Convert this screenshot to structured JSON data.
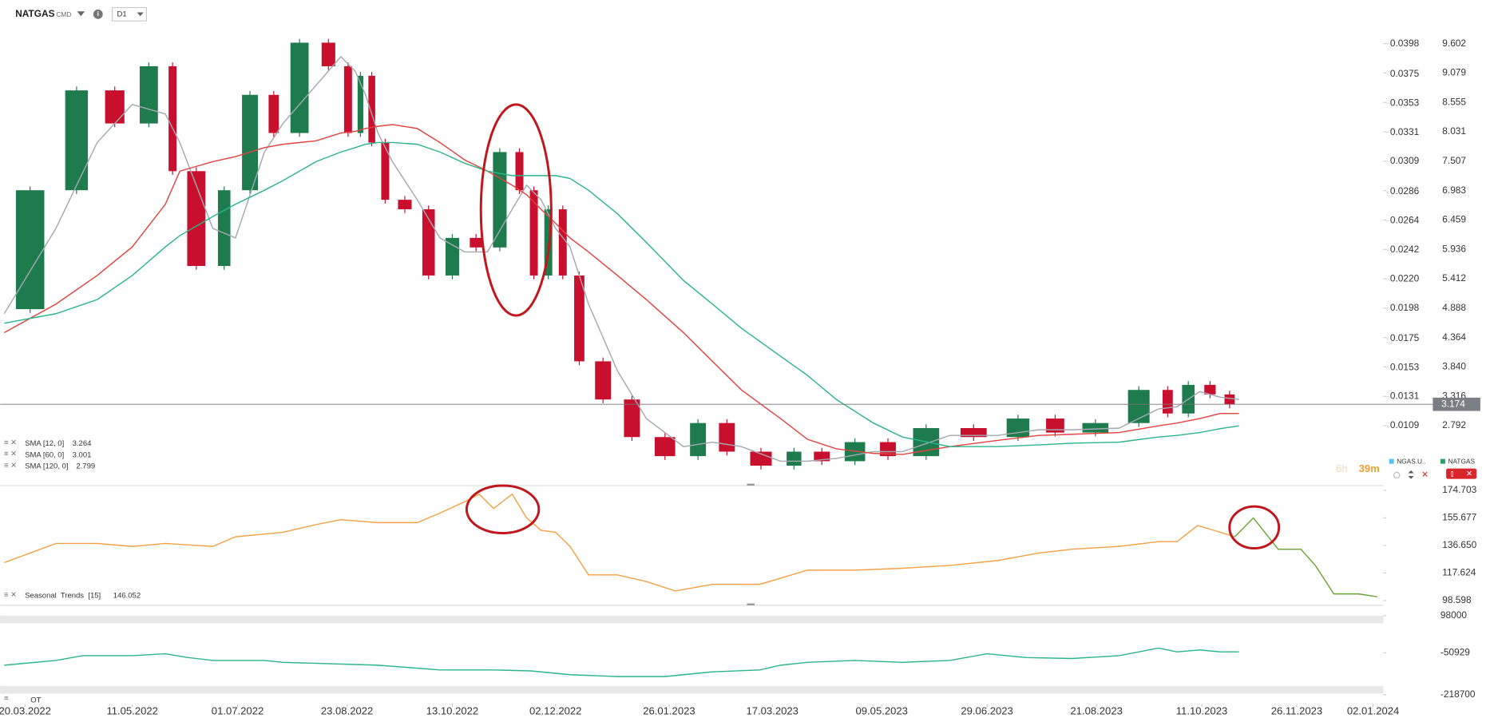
{
  "header": {
    "symbol": "NATGAS",
    "market": "CMD",
    "interval": "D1",
    "info": "i"
  },
  "chart_data": [
    {
      "type": "candlestick",
      "x": [
        "2022-03-10",
        "2022-04-04",
        "2022-04-24",
        "2022-05-11",
        "2022-05-27",
        "2022-06-03",
        "2022-06-19",
        "2022-06-30",
        "2022-07-14",
        "2022-07-23",
        "2022-08-08",
        "2022-08-20",
        "2022-08-27",
        "2022-09-01",
        "2022-09-07",
        "2022-09-14",
        "2022-09-26",
        "2022-10-07",
        "2022-10-19",
        "2022-10-30",
        "2022-11-11",
        "2022-11-18",
        "2022-11-25",
        "2022-12-02",
        "2022-12-09",
        "2022-12-18",
        "2023-01-01",
        "2023-01-15",
        "2023-02-02",
        "2023-02-16",
        "2023-03-02",
        "2023-03-21",
        "2023-04-03",
        "2023-04-17",
        "2023-05-05",
        "2023-05-19",
        "2023-06-11",
        "2023-07-04",
        "2023-07-24",
        "2023-08-09",
        "2023-09-01",
        "2023-09-20",
        "2023-09-29",
        "2023-10-10",
        "2023-10-20",
        "2023-10-29"
      ],
      "xlim": [
        "2022-03-08",
        "2024-01-07"
      ],
      "ylim": [
        1.742,
        10.042
      ],
      "yticks": [
        9.602,
        9.079,
        8.555,
        8.031,
        7.507,
        6.983,
        6.459,
        5.936,
        5.412,
        4.888,
        4.364,
        {
          "value": 3.84,
          "label": "3.840"
        },
        3.316,
        2.792
      ],
      "y2lim": [
        0.00644,
        0.04167
      ],
      "y2ticks": [
        0.0398,
        0.0375,
        0.0353,
        0.0331,
        0.0309,
        0.0286,
        0.0264,
        0.0242,
        {
          "value": 0.022,
          "label": "0.0220"
        },
        0.0198,
        0.0175,
        0.0153,
        0.0131,
        0.0109
      ],
      "series": [
        {
          "name": "NATGAS",
          "color": "#1e7b4d",
          "down_color": "#c8102e",
          "values": [
            4.87,
            6.99,
            8.77,
            8.18,
            9.2,
            7.33,
            5.64,
            6.99,
            8.69,
            8.01,
            9.62,
            9.2,
            8.01,
            9.03,
            7.84,
            6.82,
            6.65,
            5.47,
            6.14,
            5.97,
            7.67,
            6.99,
            5.47,
            6.65,
            5.47,
            3.94,
            3.26,
            2.59,
            2.25,
            2.84,
            2.33,
            2.08,
            2.33,
            2.16,
            2.5,
            2.25,
            2.75,
            2.59,
            2.92,
            2.67,
            2.84,
            3.43,
            3.01,
            3.52,
            3.35,
            3.17
          ]
        },
        {
          "name": "SMA [12, 0]",
          "color": "#a3a8b0",
          "last": 3.264,
          "values": [
            4.79,
            6.31,
            7.84,
            8.52,
            8.35,
            7.84,
            6.31,
            6.14,
            7.67,
            8.18,
            8.86,
            9.37,
            9.11,
            8.69,
            8.01,
            7.5,
            6.82,
            6.14,
            5.89,
            5.89,
            6.65,
            7.08,
            6.82,
            6.31,
            5.98,
            4.96,
            3.77,
            2.92,
            2.42,
            2.5,
            2.42,
            2.16,
            2.16,
            2.21,
            2.33,
            2.33,
            2.62,
            2.62,
            2.72,
            2.72,
            2.75,
            3.09,
            3.13,
            3.4,
            3.3,
            3.26
          ]
        },
        {
          "name": "SMA [60, 0]",
          "color": "#e3433f",
          "last": 3.001,
          "values": [
            4.45,
            4.96,
            5.47,
            5.98,
            6.74,
            7.33,
            7.5,
            7.59,
            7.75,
            7.81,
            7.87,
            8.01,
            8.04,
            8.09,
            8.13,
            8.16,
            8.09,
            7.84,
            7.53,
            7.33,
            7.08,
            6.91,
            6.65,
            6.4,
            6.14,
            5.89,
            5.47,
            5.04,
            4.45,
            3.94,
            3.43,
            2.92,
            2.55,
            2.38,
            2.3,
            2.28,
            2.42,
            2.53,
            2.62,
            2.64,
            2.67,
            2.79,
            2.84,
            2.92,
            3.01,
            3.01
          ]
        },
        {
          "name": "SMA [120, 0]",
          "color": "#2bb58c",
          "last": 2.799,
          "values": [
            4.62,
            4.79,
            5.04,
            5.47,
            5.98,
            6.18,
            6.52,
            6.74,
            6.99,
            7.16,
            7.5,
            7.67,
            7.75,
            7.81,
            7.84,
            7.84,
            7.81,
            7.67,
            7.47,
            7.33,
            7.25,
            7.25,
            7.25,
            7.25,
            7.2,
            6.99,
            6.57,
            6.06,
            5.38,
            4.96,
            4.53,
            4.03,
            3.69,
            3.26,
            2.84,
            2.59,
            2.42,
            2.42,
            2.45,
            2.48,
            2.5,
            2.59,
            2.62,
            2.67,
            2.74,
            2.79
          ]
        }
      ],
      "last_price": 3.174,
      "instruments": [
        {
          "name": "NGAS.U..",
          "color": "#4fc3f7"
        },
        {
          "name": "NATGAS",
          "color": "#26a269"
        }
      ],
      "timer": [
        "6h",
        "39m"
      ]
    },
    {
      "type": "line",
      "x": [
        "2022-03-10",
        "2022-04-04",
        "2022-04-24",
        "2022-05-11",
        "2022-05-27",
        "2022-06-19",
        "2022-06-30",
        "2022-07-23",
        "2022-08-08",
        "2022-08-20",
        "2022-09-07",
        "2022-09-26",
        "2022-10-07",
        "2022-10-19",
        "2022-10-26",
        "2022-11-02",
        "2022-11-11",
        "2022-11-18",
        "2022-11-25",
        "2022-12-02",
        "2022-12-09",
        "2022-12-18",
        "2023-01-01",
        "2023-01-15",
        "2023-01-29",
        "2023-02-16",
        "2023-03-11",
        "2023-04-03",
        "2023-04-26",
        "2023-05-19",
        "2023-06-11",
        "2023-07-04",
        "2023-07-24",
        "2023-08-09",
        "2023-09-01",
        "2023-09-20",
        "2023-09-29",
        "2023-10-09",
        "2023-10-20",
        "2023-10-27",
        "2023-11-05",
        "2023-11-17",
        "2023-11-28",
        "2023-12-05",
        "2023-12-14",
        "2023-12-26",
        "2024-01-04"
      ],
      "xlim": [
        "2022-03-08",
        "2024-01-07"
      ],
      "ylim": [
        95.97,
        177.33
      ],
      "yticks": [
        174.703,
        155.677,
        {
          "value": 136.65,
          "label": "136.650"
        },
        117.624,
        98.598
      ],
      "legend_value": 146.052,
      "series": [
        {
          "name": "Seasonal  Trends  [15]",
          "color": "#f5a146",
          "values": [
            124.8,
            138,
            138,
            136,
            138,
            136,
            142.6,
            145.8,
            151.1,
            154.4,
            152.4,
            152.4,
            159,
            166.8,
            172.1,
            162.2,
            172.1,
            155.7,
            147.1,
            145.8,
            136,
            116.3,
            116.3,
            111.7,
            105.2,
            109.8,
            109.8,
            119.6,
            119.6,
            120.9,
            122.9,
            126.2,
            131.4,
            134,
            136,
            139.3,
            139.3,
            150.4,
            145.8,
            142.6,
            null,
            null,
            null,
            null,
            null,
            null,
            null
          ]
        },
        {
          "color": "#6aa332",
          "values": [
            null,
            null,
            null,
            null,
            null,
            null,
            null,
            null,
            null,
            null,
            null,
            null,
            null,
            null,
            null,
            null,
            null,
            null,
            null,
            null,
            null,
            null,
            null,
            null,
            null,
            null,
            null,
            null,
            null,
            null,
            null,
            null,
            null,
            null,
            null,
            null,
            null,
            null,
            null,
            142.6,
            155.7,
            134,
            134,
            122.9,
            103.2,
            103.2,
            101.2
          ]
        }
      ]
    },
    {
      "type": "line",
      "x": [
        "2022-03-10",
        "2022-04-04",
        "2022-04-17",
        "2022-05-11",
        "2022-05-27",
        "2022-06-07",
        "2022-06-19",
        "2022-07-14",
        "2022-07-23",
        "2022-09-07",
        "2022-10-07",
        "2022-11-02",
        "2022-11-20",
        "2022-12-09",
        "2023-01-01",
        "2023-01-24",
        "2023-02-16",
        "2023-03-11",
        "2023-03-21",
        "2023-04-03",
        "2023-04-26",
        "2023-05-19",
        "2023-06-11",
        "2023-06-29",
        "2023-07-18",
        "2023-08-09",
        "2023-09-01",
        "2023-09-20",
        "2023-09-29",
        "2023-10-10",
        "2023-10-20",
        "2023-10-29"
      ],
      "xlim": [
        "2022-03-08",
        "2024-01-07"
      ],
      "ylim": [
        -253000,
        128500
      ],
      "yticks": [
        98000,
        -50929,
        -218700
      ],
      "xticks": [
        {
          "value": "2022-03-20",
          "label": "20.03.2022"
        },
        {
          "value": "2022-05-11",
          "label": "11.05.2022"
        },
        {
          "value": "2022-07-01",
          "label": "01.07.2022"
        },
        {
          "value": "2022-08-23",
          "label": "23.08.2022"
        },
        {
          "value": "2022-10-13",
          "label": "13.10.2022"
        },
        {
          "value": "2022-12-02",
          "label": "02.12.2022"
        },
        {
          "value": "2023-01-26",
          "label": "26.01.2023"
        },
        {
          "value": "2023-03-17",
          "label": "17.03.2023"
        },
        {
          "value": "2023-05-09",
          "label": "09.05.2023"
        },
        {
          "value": "2023-06-29",
          "label": "29.06.2023"
        },
        {
          "value": "2023-08-21",
          "label": "21.08.2023"
        },
        {
          "value": "2023-10-11",
          "label": "11.10.2023"
        },
        {
          "value": "2023-11-26",
          "label": "26.11.2023"
        },
        {
          "value": "2024-01-02",
          "label": "02.01.2024"
        }
      ],
      "series": [
        {
          "name": "OT",
          "color": "#2bb58c",
          "values": [
            -100400,
            -81300,
            -62200,
            -62200,
            -54600,
            -69900,
            -81300,
            -81300,
            -88900,
            -100400,
            -119500,
            -119500,
            -123300,
            -138500,
            -146200,
            -146200,
            -127100,
            -119500,
            -100400,
            -88900,
            -81300,
            -88900,
            -81300,
            -54600,
            -69900,
            -73700,
            -62200,
            -31700,
            -47000,
            -39300,
            -47000,
            -47000
          ]
        }
      ]
    }
  ]
}
